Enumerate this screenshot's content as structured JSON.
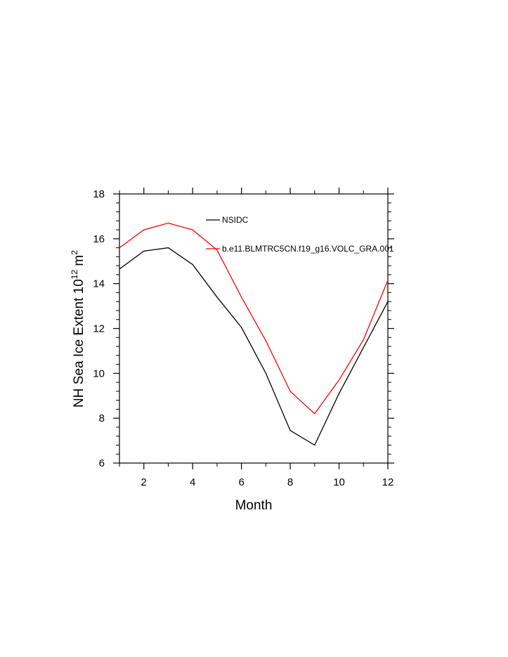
{
  "chart_data": {
    "type": "line",
    "title": "",
    "xlabel": "Month",
    "ylabel_main": "NH Sea Ice Extent 10",
    "ylabel_sup1": "12",
    "ylabel_unit": " m",
    "ylabel_sup2": "2",
    "xlim": [
      1,
      12
    ],
    "ylim": [
      6,
      18
    ],
    "x_ticks": [
      2,
      4,
      6,
      8,
      10,
      12
    ],
    "y_ticks": [
      6,
      8,
      10,
      12,
      14,
      16,
      18
    ],
    "grid": false,
    "legend_position": "top-right",
    "x": [
      1,
      2,
      3,
      4,
      5,
      6,
      7,
      8,
      9,
      10,
      11,
      12
    ],
    "series": [
      {
        "name": "NSIDC",
        "color": "#000000",
        "values": [
          14.65,
          15.45,
          15.6,
          14.85,
          13.4,
          12.05,
          10.0,
          7.45,
          6.8,
          9.1,
          11.15,
          13.2
        ]
      },
      {
        "name": "b.e11.BLMTRC5CN.f19_g16.VOLC_GRA.001",
        "color": "#ff0000",
        "values": [
          15.6,
          16.4,
          16.7,
          16.4,
          15.5,
          13.4,
          11.45,
          9.2,
          8.2,
          9.7,
          11.5,
          14.15
        ]
      }
    ]
  }
}
